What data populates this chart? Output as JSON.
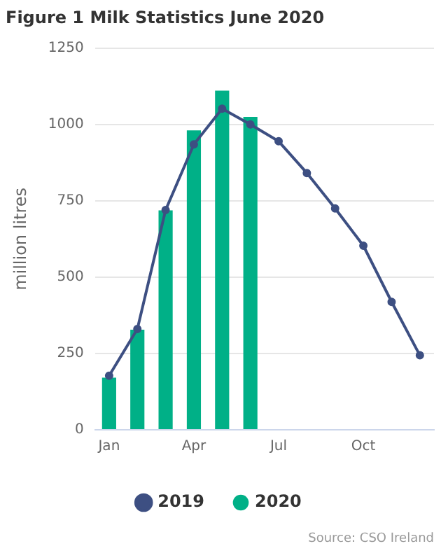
{
  "chart_data": {
    "type": "bar",
    "title": "Figure 1 Milk Statistics June 2020",
    "ylabel": "million litres",
    "categories": [
      "Jan",
      null,
      null,
      "Apr",
      null,
      null,
      "Jul",
      null,
      null,
      "Oct",
      null,
      null
    ],
    "series": [
      {
        "name": "2019",
        "type": "line",
        "color": "#3d4f82",
        "values": [
          177,
          330,
          720,
          935,
          1052,
          1000,
          945,
          841,
          725,
          603,
          419,
          244
        ]
      },
      {
        "name": "2020",
        "color": "#00b087",
        "values": [
          171,
          328,
          719,
          981,
          1111,
          1025,
          null,
          null,
          null,
          null,
          null,
          null
        ]
      }
    ],
    "ylim": [
      0,
      1250
    ],
    "yticks": [
      0,
      250,
      500,
      750,
      1000,
      1250
    ],
    "grid": "y",
    "legend": "bottom",
    "marker": "circle",
    "annotations": [
      "Source: CSO Ireland"
    ]
  }
}
